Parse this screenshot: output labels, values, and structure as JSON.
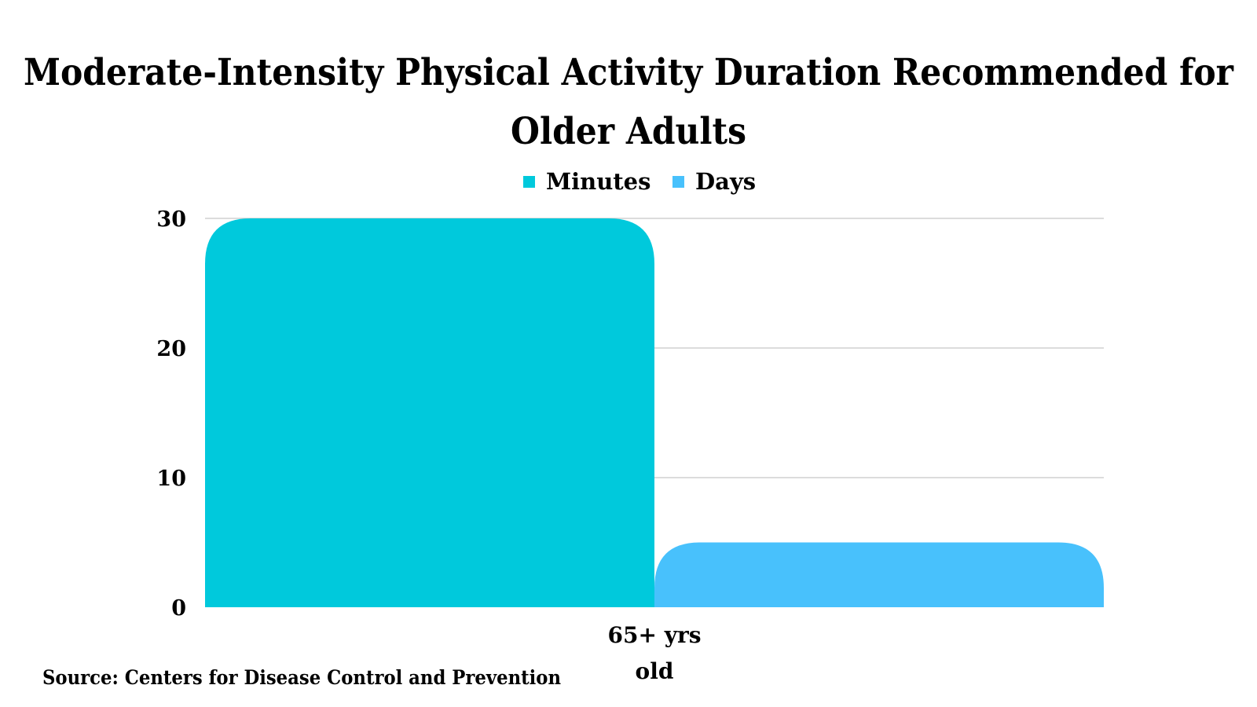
{
  "chart_data": {
    "type": "bar",
    "title_lines": [
      "Moderate-Intensity Physical Activity Duration Recommended for",
      "Older Adults"
    ],
    "categories": [
      "65+ yrs old"
    ],
    "category_label_lines": [
      [
        "65+ yrs",
        "old"
      ]
    ],
    "series": [
      {
        "name": "Minutes",
        "values": [
          30
        ],
        "color": "#00C9DC"
      },
      {
        "name": "Days",
        "values": [
          5
        ],
        "color": "#48C1FC"
      }
    ],
    "ylim": [
      0,
      30
    ],
    "y_ticks": [
      "0",
      "10",
      "20",
      "30"
    ],
    "grid": true,
    "legend_position": "top-center",
    "source": "Source: Centers for Disease Control and Prevention"
  }
}
